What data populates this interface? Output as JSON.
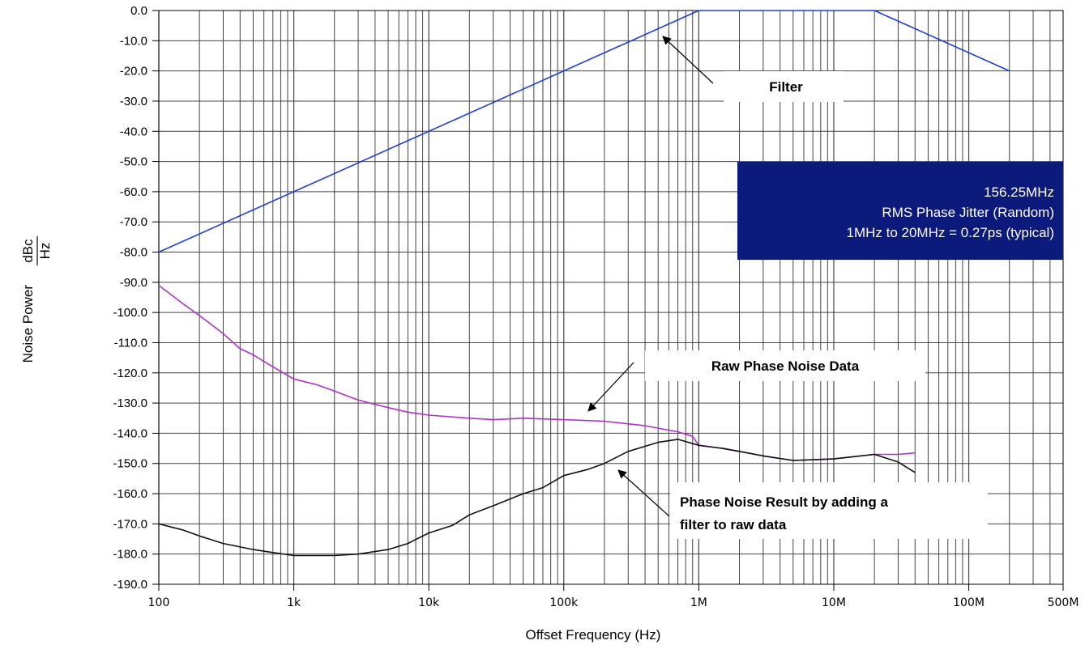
{
  "chart_data": {
    "type": "line",
    "xscale": "log",
    "xlim": [
      100,
      500000000
    ],
    "ylim": [
      -190,
      0
    ],
    "xlabel": "Offset Frequency (Hz)",
    "ylabel": "Noise Power",
    "yunit": {
      "num": "dBc",
      "den": "Hz"
    },
    "y_ticks": [
      0,
      -10,
      -20,
      -30,
      -40,
      -50,
      -60,
      -70,
      -80,
      -90,
      -100,
      -110,
      -120,
      -130,
      -140,
      -150,
      -160,
      -170,
      -180,
      -190
    ],
    "y_tick_labels": [
      "0.0",
      "-10.0",
      "-20.0",
      "-30.0",
      "-40.0",
      "-50.0",
      "-60.0",
      "-70.0",
      "-80.0",
      "-90.0",
      "-100.0",
      "-110.0",
      "-120.0",
      "-130.0",
      "-140.0",
      "-150.0",
      "-160.0",
      "-170.0",
      "-180.0",
      "-190.0"
    ],
    "x_ticks": [
      100,
      1000,
      10000,
      100000,
      1000000,
      10000000,
      100000000,
      500000000
    ],
    "x_tick_labels": [
      "100",
      "1k",
      "10k",
      "100k",
      "1M",
      "10M",
      "100M",
      "500M"
    ],
    "grid": true,
    "series": [
      {
        "key": "filter",
        "color": "#1c3ee6",
        "x": [
          100,
          1000000,
          20000000,
          200000000
        ],
        "y": [
          -80,
          0,
          0,
          -20
        ]
      },
      {
        "key": "raw",
        "color": "#b030d0",
        "x": [
          100,
          150,
          200,
          300,
          400,
          500,
          700,
          1000,
          1500,
          2000,
          3000,
          5000,
          7000,
          10000,
          20000,
          30000,
          50000,
          100000,
          200000,
          400000,
          700000,
          900000,
          1000000,
          1500000,
          2000000,
          3000000,
          5000000,
          10000000,
          20000000,
          30000000,
          40000000
        ],
        "y": [
          -91,
          -97,
          -101,
          -107,
          -112,
          -114,
          -118,
          -122,
          -124,
          -126,
          -129,
          -131.5,
          -133,
          -134,
          -135,
          -135.5,
          -135,
          -135.5,
          -136,
          -137.5,
          -139.5,
          -141,
          -144,
          -145,
          -146,
          -147.5,
          -149,
          -148.5,
          -147,
          -147,
          -146.5
        ]
      },
      {
        "key": "filtered",
        "color": "#111111",
        "x": [
          100,
          150,
          200,
          300,
          500,
          700,
          1000,
          1500,
          2000,
          3000,
          5000,
          7000,
          10000,
          15000,
          20000,
          30000,
          50000,
          70000,
          100000,
          150000,
          200000,
          300000,
          500000,
          700000,
          1000000,
          1500000,
          2000000,
          3000000,
          5000000,
          10000000,
          20000000,
          30000000,
          40000000
        ],
        "y": [
          -170,
          -172,
          -174,
          -176.5,
          -178.5,
          -179.5,
          -180.5,
          -180.5,
          -180.5,
          -180,
          -178.5,
          -176.5,
          -173,
          -170.5,
          -167,
          -164,
          -160,
          -158,
          -154,
          -152,
          -150,
          -146,
          -143,
          -142,
          -144,
          -145,
          -146,
          -147.5,
          -149,
          -148.5,
          -147,
          -149.5,
          -153
        ]
      }
    ],
    "annotations": [
      {
        "key": "filter",
        "lines": [
          "Filter"
        ]
      },
      {
        "key": "raw",
        "lines": [
          "Raw Phase Noise Data"
        ]
      },
      {
        "key": "result",
        "lines": [
          "Phase Noise Result by adding a",
          "filter to raw data"
        ]
      }
    ],
    "info_box": {
      "lines": [
        "156.25MHz",
        "RMS Phase Jitter (Random)",
        "1MHz to 20MHz = 0.27ps (typical)"
      ],
      "bg": "#0c1a7c"
    }
  }
}
